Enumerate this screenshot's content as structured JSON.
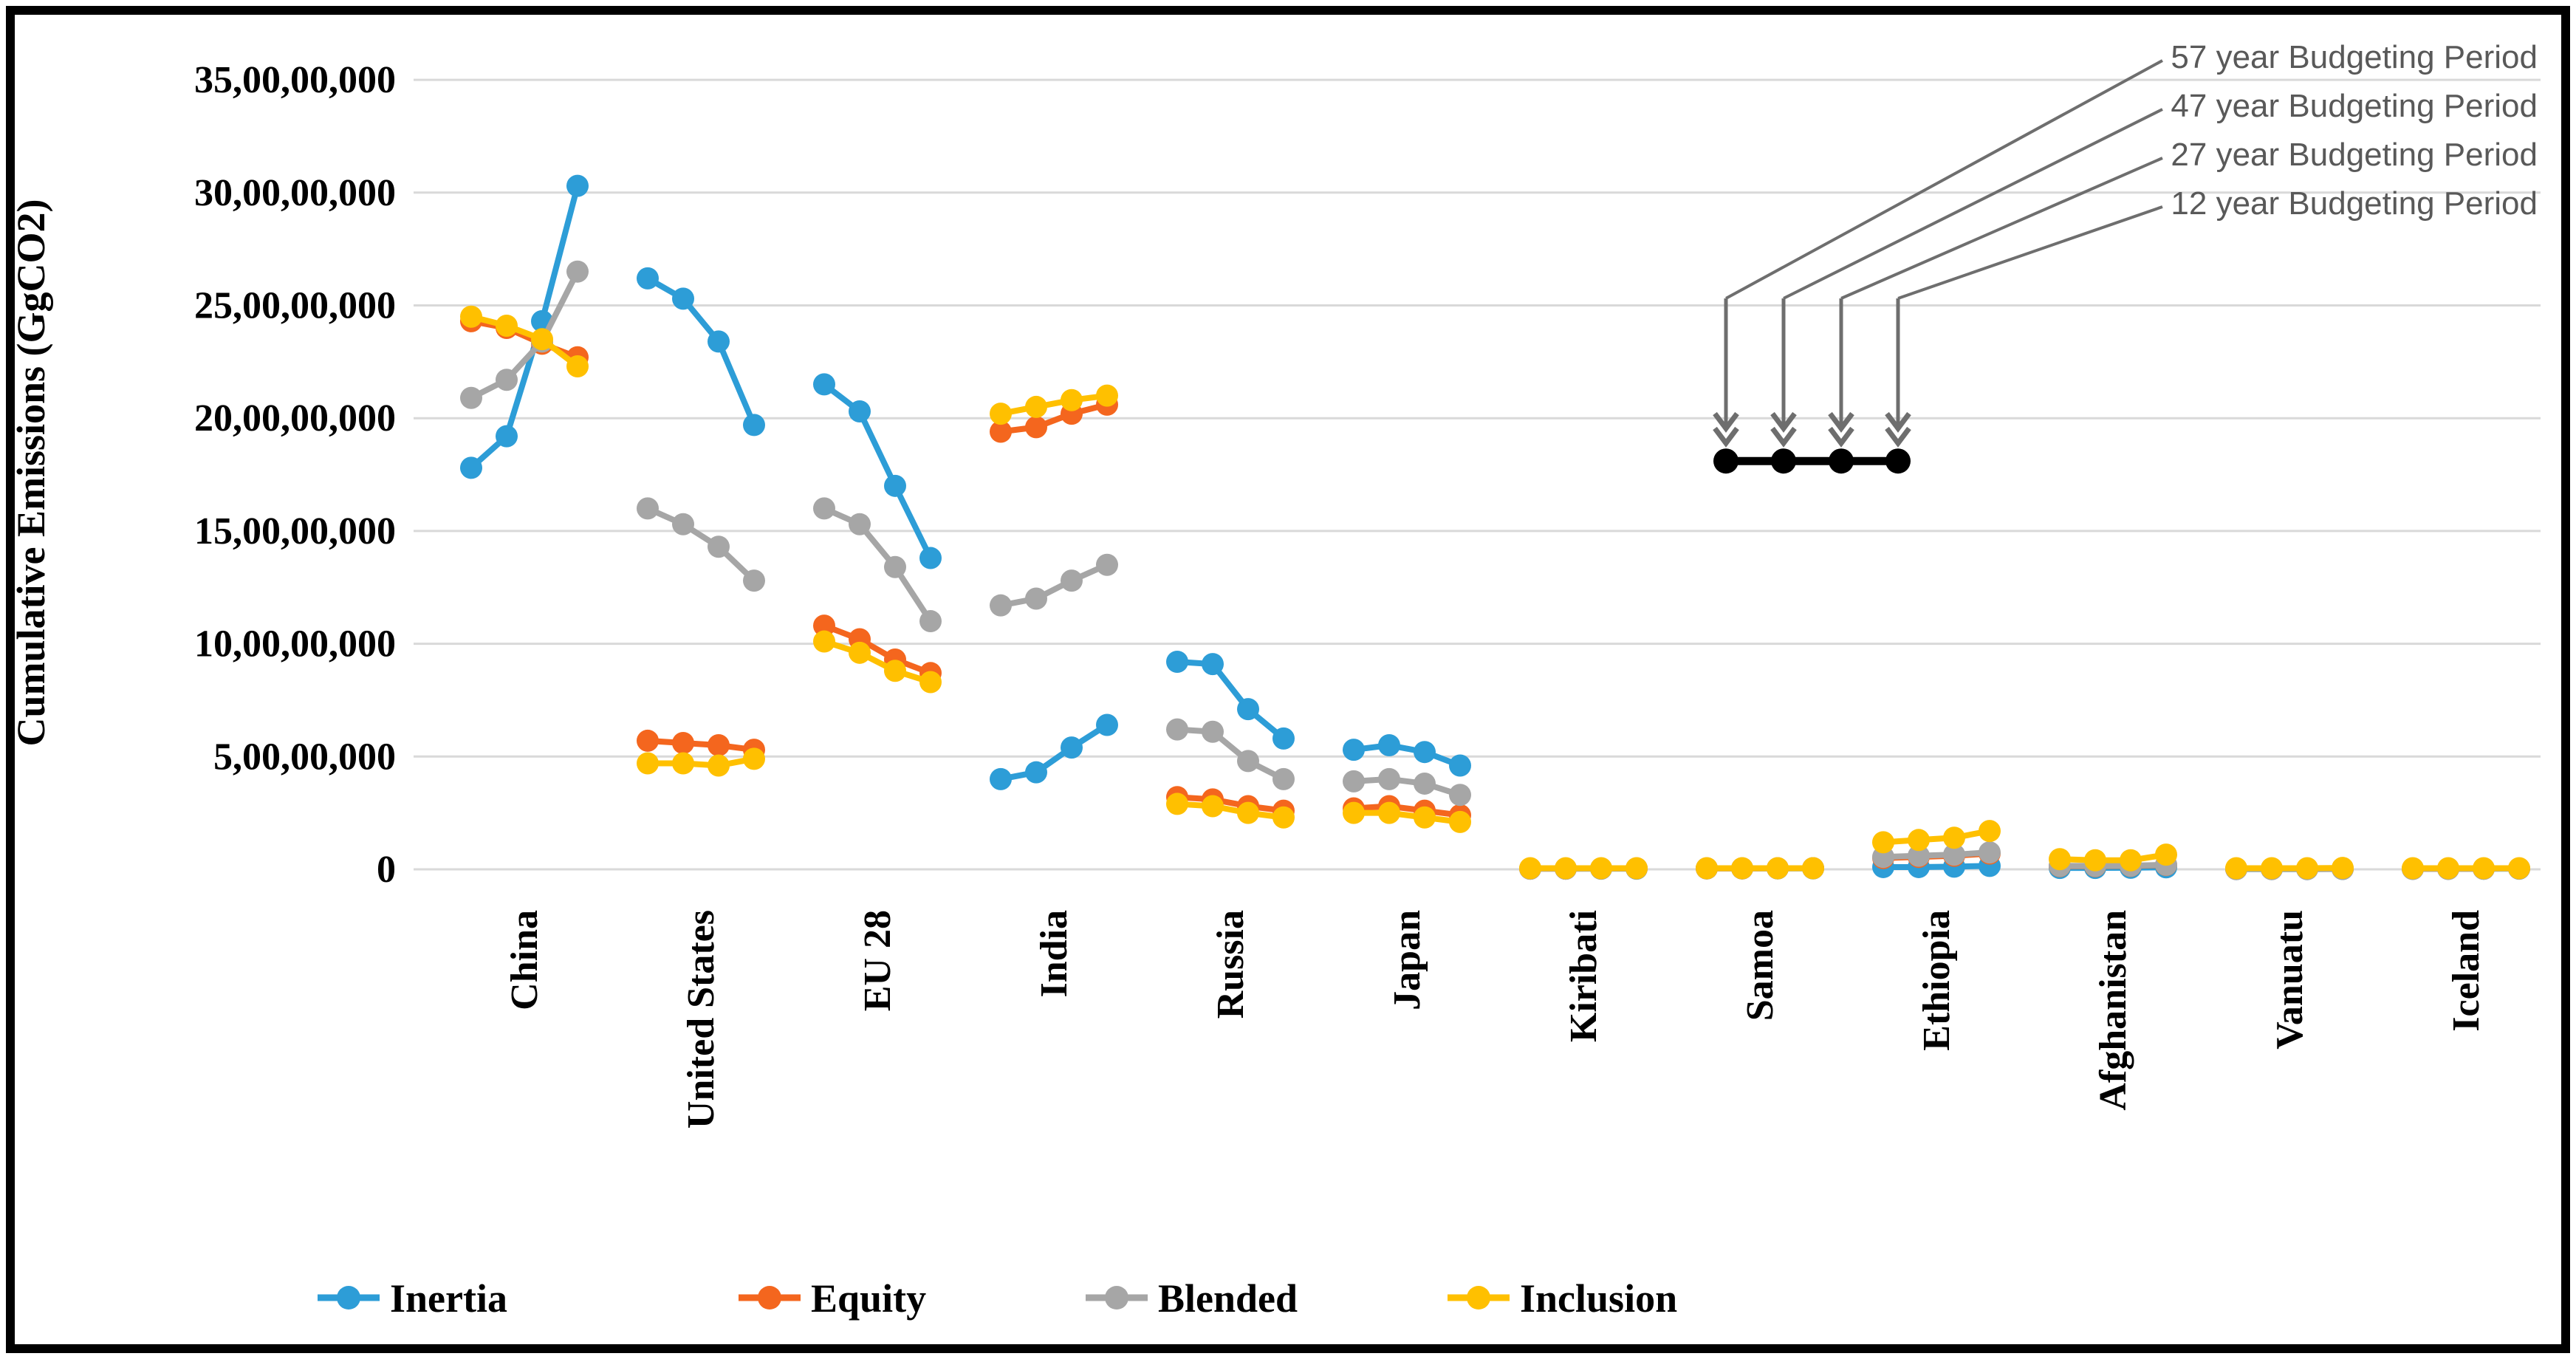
{
  "chart_data": {
    "type": "line",
    "title": "",
    "ylabel": "Cumulative Emissions (GgCO2)",
    "xlabel": "",
    "unit": "GgCO2",
    "grid": "horizontal",
    "legend_position": "bottom",
    "ylim": [
      0,
      350000000
    ],
    "y_ticks": [
      {
        "label": "35,00,00,000",
        "value": 350000000
      },
      {
        "label": "30,00,00,000",
        "value": 300000000
      },
      {
        "label": "25,00,00,000",
        "value": 250000000
      },
      {
        "label": "20,00,00,000",
        "value": 200000000
      },
      {
        "label": "15,00,00,000",
        "value": 150000000
      },
      {
        "label": "10,00,00,000",
        "value": 100000000
      },
      {
        "label": "5,00,00,000",
        "value": 50000000
      },
      {
        "label": "0",
        "value": 0
      }
    ],
    "categories": [
      "China",
      "United States",
      "EU 28",
      "India",
      "Russia",
      "Japan",
      "Kiribati",
      "Samoa",
      "Ethiopia",
      "Afghanistan",
      "Vanuatu",
      "Iceland"
    ],
    "points_per_category": [
      "57 year Budgeting Period",
      "47 year Budgeting Period",
      "27 year Budgeting Period",
      "12 year Budgeting Period"
    ],
    "series": [
      {
        "name": "Inertia",
        "color": "#2D9DD7",
        "values": [
          [
            178000000,
            192000000,
            243000000,
            303000000
          ],
          [
            262000000,
            253000000,
            234000000,
            197000000
          ],
          [
            215000000,
            203000000,
            170000000,
            138000000
          ],
          [
            40000000,
            43000000,
            54000000,
            64000000
          ],
          [
            92000000,
            91000000,
            71000000,
            58000000
          ],
          [
            53000000,
            55000000,
            52000000,
            46000000
          ],
          [
            300000,
            300000,
            300000,
            300000
          ],
          [
            400000,
            400000,
            400000,
            400000
          ],
          [
            1000000,
            1000000,
            1200000,
            1500000
          ],
          [
            600000,
            600000,
            700000,
            900000
          ],
          [
            100000,
            100000,
            100000,
            150000
          ],
          [
            200000,
            200000,
            250000,
            300000
          ]
        ]
      },
      {
        "name": "Equity",
        "color": "#F4661E",
        "values": [
          [
            243000000,
            240000000,
            233000000,
            227000000
          ],
          [
            57000000,
            56000000,
            55000000,
            53000000
          ],
          [
            108000000,
            102000000,
            93000000,
            87000000
          ],
          [
            194000000,
            196000000,
            202000000,
            206000000
          ],
          [
            32000000,
            31000000,
            28000000,
            26000000
          ],
          [
            27000000,
            28000000,
            26000000,
            24000000
          ],
          [
            300000,
            300000,
            350000,
            400000
          ],
          [
            400000,
            400000,
            450000,
            500000
          ],
          [
            5000000,
            5500000,
            6000000,
            7000000
          ],
          [
            1400000,
            1400000,
            1500000,
            1900000
          ],
          [
            150000,
            150000,
            200000,
            250000
          ],
          [
            250000,
            250000,
            300000,
            350000
          ]
        ]
      },
      {
        "name": "Blended",
        "color": "#A6A6A6",
        "values": [
          [
            209000000,
            217000000,
            234000000,
            265000000
          ],
          [
            160000000,
            153000000,
            143000000,
            128000000
          ],
          [
            160000000,
            153000000,
            134000000,
            110000000
          ],
          [
            117000000,
            120000000,
            128000000,
            135000000
          ],
          [
            62000000,
            61000000,
            48000000,
            40000000
          ],
          [
            39000000,
            40000000,
            38000000,
            33000000
          ],
          [
            300000,
            300000,
            350000,
            400000
          ],
          [
            400000,
            400000,
            450000,
            500000
          ],
          [
            5500000,
            6000000,
            6500000,
            7500000
          ],
          [
            1500000,
            1500000,
            1600000,
            2000000
          ],
          [
            150000,
            150000,
            200000,
            250000
          ],
          [
            250000,
            250000,
            300000,
            350000
          ]
        ]
      },
      {
        "name": "Inclusion",
        "color": "#FFC000",
        "values": [
          [
            245000000,
            241000000,
            235000000,
            223000000
          ],
          [
            47000000,
            47000000,
            46000000,
            49000000
          ],
          [
            101000000,
            96000000,
            88000000,
            83000000
          ],
          [
            202000000,
            205000000,
            208000000,
            210000000
          ],
          [
            29000000,
            28000000,
            25000000,
            23000000
          ],
          [
            25000000,
            25000000,
            23000000,
            21000000
          ],
          [
            500000,
            500000,
            500000,
            500000
          ],
          [
            500000,
            500000,
            500000,
            500000
          ],
          [
            12000000,
            13000000,
            14000000,
            17000000
          ],
          [
            4500000,
            4000000,
            4000000,
            6500000
          ],
          [
            500000,
            500000,
            500000,
            600000
          ],
          [
            500000,
            500000,
            500000,
            500000
          ]
        ]
      }
    ],
    "annotations": {
      "labels": [
        "57 year Budgeting Period",
        "47 year Budgeting Period",
        "27 year Budgeting Period",
        "12 year Budgeting Period"
      ],
      "marker_line_value": 181000000,
      "marker_color": "#000000",
      "arrow_color": "#6E6E6E"
    }
  }
}
